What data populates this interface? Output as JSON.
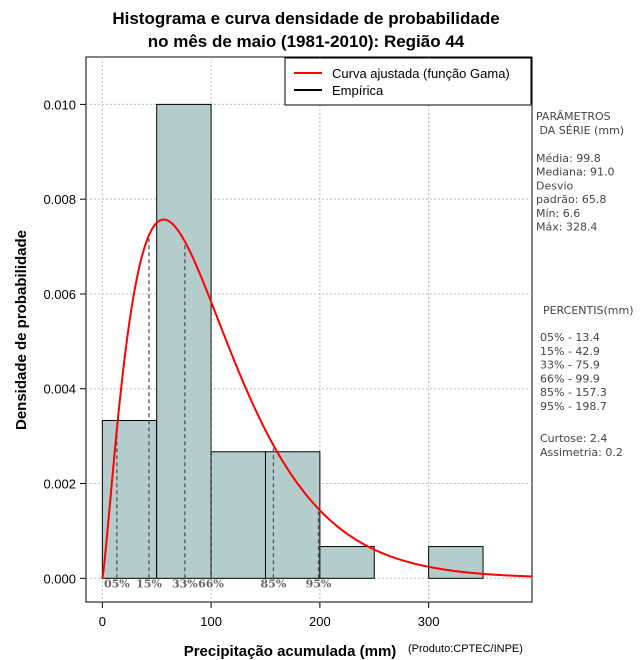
{
  "chart_data": {
    "type": "bar",
    "title_line1": "Histograma e curva densidade de probabilidade",
    "title_line2": "no mês de maio (1981-2010): Região 44",
    "xlabel": "Precipitação acumulada (mm)",
    "ylabel": "Densidade de probabilidade",
    "credit": "(Produto:CPTEC/INPE)",
    "xlim": [
      -15,
      395
    ],
    "ylim": [
      -0.0005,
      0.011
    ],
    "x_ticks": [
      0,
      100,
      200,
      300
    ],
    "y_ticks": [
      0.0,
      0.002,
      0.004,
      0.006,
      0.008,
      0.01
    ],
    "y_tick_labels": [
      "0.000",
      "0.002",
      "0.004",
      "0.006",
      "0.008",
      "0.010"
    ],
    "grid": true,
    "bin_edges": [
      0,
      50,
      100,
      150,
      200,
      250,
      300,
      350
    ],
    "values": [
      0.00333,
      0.01,
      0.00267,
      0.00267,
      0.00067,
      0.0,
      0.00067
    ],
    "bar_color": "#b4cccb",
    "curve": {
      "name": "Curva ajustada (função Gama)",
      "distribution": "gamma",
      "shape": 2.3,
      "scale": 43.4,
      "color": "#ff0000"
    },
    "empirical_name": "Empírica",
    "legend_position": "top-right",
    "percentiles_marks": [
      {
        "value": 13.4,
        "label": "05%"
      },
      {
        "value": 42.9,
        "label": "15%"
      },
      {
        "value": 75.9,
        "label": "33%"
      },
      {
        "value": 99.9,
        "label": "66%"
      },
      {
        "value": 157.3,
        "label": "85%"
      },
      {
        "value": 198.7,
        "label": "95%"
      }
    ]
  },
  "side_panel": {
    "params_title_1": "PARÂMETROS",
    "params_title_2": " DA SÉRIE (mm)",
    "params_lines": [
      "Média:  99.8",
      "Mediana:  91.0",
      "Desvio",
      "padrão:  65.8",
      "Mín:  6.6",
      "Máx:  328.4"
    ],
    "percentis_title": "PERCENTIS(mm)",
    "percentis_lines": [
      "05% -  13.4",
      "15% -  42.9",
      "33% -  75.9",
      "66% -  99.9",
      "85% -  157.3",
      "95% -  198.7"
    ],
    "stats_lines": [
      "Curtose:  2.4",
      "Assimetria:  0.2"
    ]
  }
}
